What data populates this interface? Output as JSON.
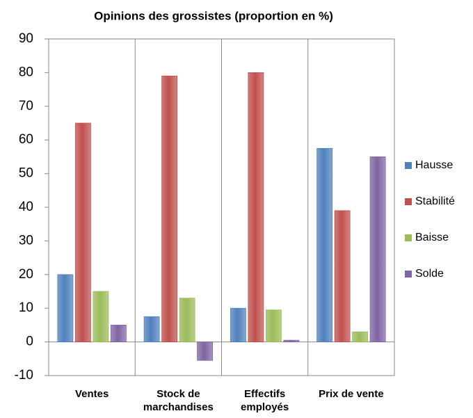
{
  "chart_data": {
    "type": "bar",
    "title": "Opinions des grossistes (proportion en %)",
    "categories": [
      "Ventes",
      "Stock de marchandises",
      "Effectifs employés",
      "Prix de vente"
    ],
    "series": [
      {
        "name": "Hausse",
        "color": "#4f81bd",
        "values": [
          20,
          7.5,
          10,
          57.5
        ]
      },
      {
        "name": "Stabilité",
        "color": "#c0504d",
        "values": [
          65,
          79,
          80,
          39
        ]
      },
      {
        "name": "Baisse",
        "color": "#9bbb59",
        "values": [
          15,
          13,
          9.5,
          3
        ]
      },
      {
        "name": "Solde",
        "color": "#8064a2",
        "values": [
          5,
          -5.5,
          0.5,
          55
        ]
      }
    ],
    "ylim": [
      -10,
      90
    ],
    "yticks": [
      -10,
      0,
      10,
      20,
      30,
      40,
      50,
      60,
      70,
      80,
      90
    ],
    "legend": "right"
  }
}
